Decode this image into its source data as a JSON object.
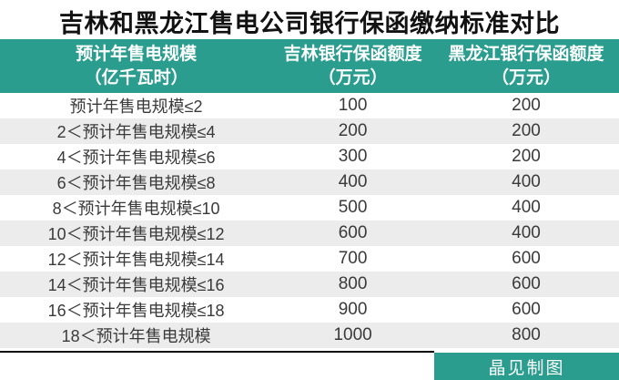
{
  "title": "吉林和黑龙江售电公司银行保函缴纳标准对比",
  "credit": "晶见制图",
  "colors": {
    "accent_teal": "#2a9d8f",
    "row_alt_gray": "#ececec",
    "title_black": "#121212",
    "divider_black": "#0a0a0a"
  },
  "table": {
    "headers": [
      {
        "line1": "预计年售电规模",
        "line2": "（亿千瓦时）"
      },
      {
        "line1": "吉林银行保函额度",
        "line2": "（万元）"
      },
      {
        "line1": "黑龙江银行保函额度",
        "line2": "（万元）"
      }
    ],
    "rows": [
      {
        "scale": "预计年售电规模≤2",
        "jilin": "100",
        "heilongjiang": "200"
      },
      {
        "scale": "2＜预计年售电规模≤4",
        "jilin": "200",
        "heilongjiang": "200"
      },
      {
        "scale": "4＜预计年售电规模≤6",
        "jilin": "300",
        "heilongjiang": "200"
      },
      {
        "scale": "6＜预计年售电规模≤8",
        "jilin": "400",
        "heilongjiang": "400"
      },
      {
        "scale": "8＜预计年售电规模≤10",
        "jilin": "500",
        "heilongjiang": "400"
      },
      {
        "scale": "10＜预计年售电规模≤12",
        "jilin": "600",
        "heilongjiang": "400"
      },
      {
        "scale": "12＜预计年售电规模≤14",
        "jilin": "700",
        "heilongjiang": "600"
      },
      {
        "scale": "14＜预计年售电规模≤16",
        "jilin": "800",
        "heilongjiang": "600"
      },
      {
        "scale": "16＜预计年售电规模≤18",
        "jilin": "900",
        "heilongjiang": "600"
      },
      {
        "scale": "18＜预计年售电规模",
        "jilin": "1000",
        "heilongjiang": "800"
      }
    ]
  },
  "chart_data": {
    "type": "table",
    "title": "吉林和黑龙江售电公司银行保函缴纳标准对比",
    "columns": [
      "预计年售电规模（亿千瓦时）",
      "吉林银行保函额度（万元）",
      "黑龙江银行保函额度（万元）"
    ],
    "rows": [
      [
        "预计年售电规模≤2",
        100,
        200
      ],
      [
        "2＜预计年售电规模≤4",
        200,
        200
      ],
      [
        "4＜预计年售电规模≤6",
        300,
        200
      ],
      [
        "6＜预计年售电规模≤8",
        400,
        400
      ],
      [
        "8＜预计年售电规模≤10",
        500,
        400
      ],
      [
        "10＜预计年售电规模≤12",
        600,
        400
      ],
      [
        "12＜预计年售电规模≤14",
        700,
        600
      ],
      [
        "14＜预计年售电规模≤16",
        800,
        600
      ],
      [
        "16＜预计年售电规模≤18",
        900,
        600
      ],
      [
        "18＜预计年售电规模",
        1000,
        800
      ]
    ]
  }
}
